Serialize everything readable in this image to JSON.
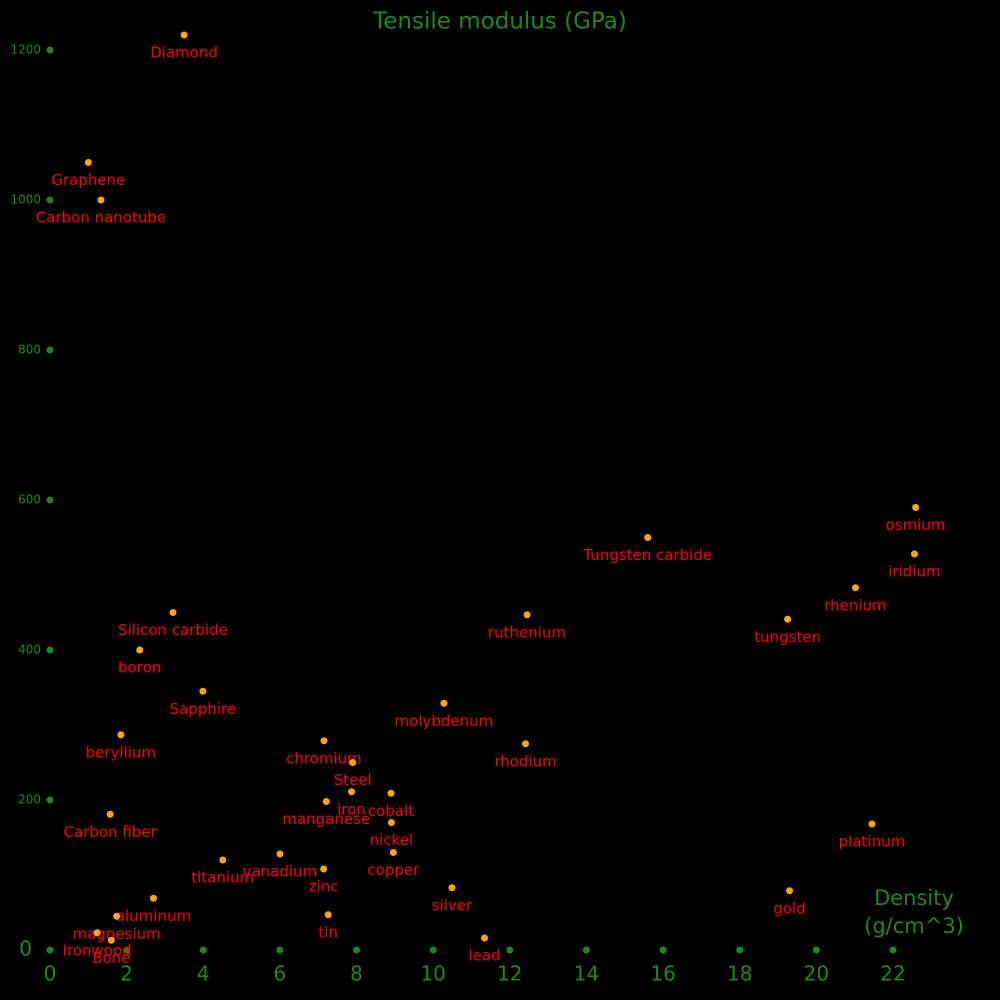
{
  "chart_data": {
    "type": "scatter",
    "y_label": "Tensile modulus (GPa)",
    "x_label": "Density (g/cm^3)",
    "xlim": [
      0,
      22
    ],
    "ylim": [
      0,
      1200
    ],
    "xticks": [
      0,
      2,
      4,
      6,
      8,
      10,
      12,
      14,
      16,
      18,
      20,
      22
    ],
    "yticks": [
      0,
      200,
      400,
      600,
      800,
      1000,
      1200
    ],
    "point_color": "#ffa500",
    "label_color": "#ff0000",
    "axis_color": "#1a8a1a",
    "points": [
      {
        "label": "Diamond",
        "x": 3.5,
        "y": 1220
      },
      {
        "label": "Graphene",
        "x": 1.0,
        "y": 1050
      },
      {
        "label": "Carbon nanotube",
        "x": 1.33,
        "y": 1000
      },
      {
        "label": "osmium",
        "x": 22.59,
        "y": 590
      },
      {
        "label": "iridium",
        "x": 22.56,
        "y": 528
      },
      {
        "label": "Tungsten carbide",
        "x": 15.6,
        "y": 550
      },
      {
        "label": "rhenium",
        "x": 21.02,
        "y": 483
      },
      {
        "label": "tungsten",
        "x": 19.25,
        "y": 441
      },
      {
        "label": "ruthenium",
        "x": 12.45,
        "y": 447
      },
      {
        "label": "Silicon carbide",
        "x": 3.21,
        "y": 450
      },
      {
        "label": "boron",
        "x": 2.34,
        "y": 400
      },
      {
        "label": "Sapphire",
        "x": 3.99,
        "y": 345
      },
      {
        "label": "molybdenum",
        "x": 10.28,
        "y": 329
      },
      {
        "label": "beryllium",
        "x": 1.85,
        "y": 287
      },
      {
        "label": "chromium",
        "x": 7.15,
        "y": 279
      },
      {
        "label": "rhodium",
        "x": 12.41,
        "y": 275
      },
      {
        "label": "Steel",
        "x": 7.9,
        "y": 250
      },
      {
        "label": "iron",
        "x": 7.87,
        "y": 211
      },
      {
        "label": "cobalt",
        "x": 8.9,
        "y": 209
      },
      {
        "label": "manganese",
        "x": 7.21,
        "y": 198
      },
      {
        "label": "nickel",
        "x": 8.91,
        "y": 170
      },
      {
        "label": "Carbon fiber",
        "x": 1.57,
        "y": 181
      },
      {
        "label": "platinum",
        "x": 21.45,
        "y": 168
      },
      {
        "label": "titanium",
        "x": 4.51,
        "y": 120
      },
      {
        "label": "vanadium",
        "x": 6.0,
        "y": 128
      },
      {
        "label": "copper",
        "x": 8.96,
        "y": 130
      },
      {
        "label": "zinc",
        "x": 7.14,
        "y": 108
      },
      {
        "label": "gold",
        "x": 19.3,
        "y": 79
      },
      {
        "label": "silver",
        "x": 10.49,
        "y": 83
      },
      {
        "label": "aluminum",
        "x": 2.7,
        "y": 69
      },
      {
        "label": "magnesium",
        "x": 1.74,
        "y": 45
      },
      {
        "label": "tin",
        "x": 7.26,
        "y": 47
      },
      {
        "label": "Ironwood",
        "x": 1.23,
        "y": 23
      },
      {
        "label": "Bone",
        "x": 1.6,
        "y": 13
      },
      {
        "label": "lead",
        "x": 11.34,
        "y": 16
      }
    ]
  }
}
